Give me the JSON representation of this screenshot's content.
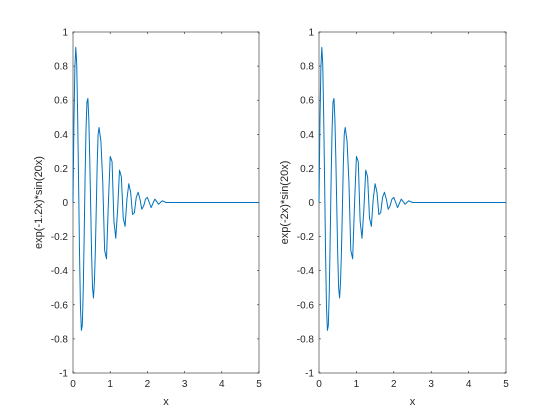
{
  "figure": {
    "background": "#ffffff",
    "axes_color": "#262626",
    "line_color": "#0072BD"
  },
  "chart_data": [
    {
      "type": "line",
      "xlabel": "x",
      "ylabel": "exp(-1.2x)*sin(20x)",
      "xlim": [
        0,
        5
      ],
      "ylim": [
        -1,
        1
      ],
      "xticks": [
        0,
        1,
        2,
        3,
        4,
        5
      ],
      "xtick_labels": [
        "0",
        "1",
        "2",
        "3",
        "4",
        "5"
      ],
      "yticks": [
        -1,
        -0.8,
        -0.6,
        -0.4,
        -0.2,
        0,
        0.2,
        0.4,
        0.6,
        0.8,
        1
      ],
      "ytick_labels": [
        "-1",
        "-0.8",
        "-0.6",
        "-0.4",
        "-0.2",
        "0",
        "0.2",
        "0.4",
        "0.6",
        "0.8",
        "1"
      ],
      "grid": false,
      "series": [
        {
          "values": [
            [
              0,
              0
            ],
            [
              0.025,
              0.47
            ],
            [
              0.05,
              0.79
            ],
            [
              0.075,
              0.91
            ],
            [
              0.1,
              0.81
            ],
            [
              0.125,
              0.51
            ],
            [
              0.15,
              0.12
            ],
            [
              0.175,
              -0.29
            ],
            [
              0.2,
              -0.61
            ],
            [
              0.225,
              -0.75
            ],
            [
              0.25,
              -0.72
            ],
            [
              0.275,
              -0.52
            ],
            [
              0.3,
              -0.2
            ],
            [
              0.325,
              0.15
            ],
            [
              0.35,
              0.43
            ],
            [
              0.375,
              0.59
            ],
            [
              0.4,
              0.61
            ],
            [
              0.425,
              0.49
            ],
            [
              0.45,
              0.26
            ],
            [
              0.475,
              -0.02
            ],
            [
              0.5,
              -0.3
            ],
            [
              0.525,
              -0.5
            ],
            [
              0.55,
              -0.56
            ],
            [
              0.575,
              -0.47
            ],
            [
              0.6,
              -0.29
            ],
            [
              0.625,
              -0.04
            ],
            [
              0.65,
              0.22
            ],
            [
              0.675,
              0.4
            ],
            [
              0.7,
              0.44
            ],
            [
              0.75,
              0.36
            ],
            [
              0.8,
              0.12
            ],
            [
              0.85,
              -0.28
            ],
            [
              0.9,
              -0.33
            ],
            [
              0.95,
              -0.01
            ],
            [
              1.0,
              0.27
            ],
            [
              1.05,
              0.24
            ],
            [
              1.1,
              -0.11
            ],
            [
              1.15,
              -0.21
            ],
            [
              1.2,
              -0.04
            ],
            [
              1.25,
              0.19
            ],
            [
              1.3,
              0.15
            ],
            [
              1.35,
              -0.09
            ],
            [
              1.4,
              -0.14
            ],
            [
              1.45,
              0.02
            ],
            [
              1.5,
              0.11
            ],
            [
              1.55,
              0.06
            ],
            [
              1.6,
              -0.07
            ],
            [
              1.65,
              -0.06
            ],
            [
              1.7,
              0.03
            ],
            [
              1.75,
              0.06
            ],
            [
              1.8,
              0.02
            ],
            [
              1.85,
              -0.04
            ],
            [
              1.9,
              -0.02
            ],
            [
              1.95,
              0.02
            ],
            [
              2.0,
              0.03
            ],
            [
              2.1,
              -0.03
            ],
            [
              2.2,
              0.02
            ],
            [
              2.3,
              -0.01
            ],
            [
              2.4,
              0.01
            ],
            [
              2.5,
              0.0
            ],
            [
              2.6,
              0.0
            ],
            [
              2.8,
              0.0
            ],
            [
              3.0,
              0.0
            ],
            [
              3.5,
              0.0
            ],
            [
              4.0,
              0.0
            ],
            [
              4.5,
              0.0
            ],
            [
              5.0,
              0.0
            ]
          ]
        }
      ]
    },
    {
      "type": "line",
      "xlabel": "x",
      "ylabel": "exp(-2x)*sin(20x)",
      "xlim": [
        0,
        5
      ],
      "ylim": [
        -1,
        1
      ],
      "xticks": [
        0,
        1,
        2,
        3,
        4,
        5
      ],
      "xtick_labels": [
        "0",
        "1",
        "2",
        "3",
        "4",
        "5"
      ],
      "yticks": [
        -1,
        -0.8,
        -0.6,
        -0.4,
        -0.2,
        0,
        0.2,
        0.4,
        0.6,
        0.8,
        1
      ],
      "ytick_labels": [
        "-1",
        "-0.8",
        "-0.6",
        "-0.4",
        "-0.2",
        "0",
        "0.2",
        "0.4",
        "0.6",
        "0.8",
        "1"
      ],
      "grid": false,
      "series": [
        {
          "values": [
            [
              0,
              0
            ],
            [
              0.025,
              0.47
            ],
            [
              0.05,
              0.79
            ],
            [
              0.075,
              0.91
            ],
            [
              0.1,
              0.81
            ],
            [
              0.125,
              0.51
            ],
            [
              0.15,
              0.12
            ],
            [
              0.175,
              -0.29
            ],
            [
              0.2,
              -0.61
            ],
            [
              0.225,
              -0.75
            ],
            [
              0.25,
              -0.72
            ],
            [
              0.275,
              -0.52
            ],
            [
              0.3,
              -0.2
            ],
            [
              0.325,
              0.15
            ],
            [
              0.35,
              0.43
            ],
            [
              0.375,
              0.59
            ],
            [
              0.4,
              0.61
            ],
            [
              0.425,
              0.49
            ],
            [
              0.45,
              0.26
            ],
            [
              0.475,
              -0.02
            ],
            [
              0.5,
              -0.3
            ],
            [
              0.525,
              -0.5
            ],
            [
              0.55,
              -0.56
            ],
            [
              0.575,
              -0.47
            ],
            [
              0.6,
              -0.29
            ],
            [
              0.625,
              -0.04
            ],
            [
              0.65,
              0.22
            ],
            [
              0.675,
              0.4
            ],
            [
              0.7,
              0.44
            ],
            [
              0.75,
              0.36
            ],
            [
              0.8,
              0.12
            ],
            [
              0.85,
              -0.28
            ],
            [
              0.9,
              -0.33
            ],
            [
              0.95,
              -0.01
            ],
            [
              1.0,
              0.27
            ],
            [
              1.05,
              0.24
            ],
            [
              1.1,
              -0.11
            ],
            [
              1.15,
              -0.21
            ],
            [
              1.2,
              -0.04
            ],
            [
              1.25,
              0.19
            ],
            [
              1.3,
              0.15
            ],
            [
              1.35,
              -0.09
            ],
            [
              1.4,
              -0.14
            ],
            [
              1.45,
              0.02
            ],
            [
              1.5,
              0.11
            ],
            [
              1.55,
              0.06
            ],
            [
              1.6,
              -0.07
            ],
            [
              1.65,
              -0.06
            ],
            [
              1.7,
              0.03
            ],
            [
              1.75,
              0.06
            ],
            [
              1.8,
              0.02
            ],
            [
              1.85,
              -0.04
            ],
            [
              1.9,
              -0.02
            ],
            [
              1.95,
              0.02
            ],
            [
              2.0,
              0.03
            ],
            [
              2.1,
              -0.03
            ],
            [
              2.2,
              0.02
            ],
            [
              2.3,
              -0.01
            ],
            [
              2.4,
              0.01
            ],
            [
              2.5,
              0.0
            ],
            [
              2.6,
              0.0
            ],
            [
              2.8,
              0.0
            ],
            [
              3.0,
              0.0
            ],
            [
              3.5,
              0.0
            ],
            [
              4.0,
              0.0
            ],
            [
              4.5,
              0.0
            ],
            [
              5.0,
              0.0
            ]
          ]
        }
      ]
    }
  ]
}
